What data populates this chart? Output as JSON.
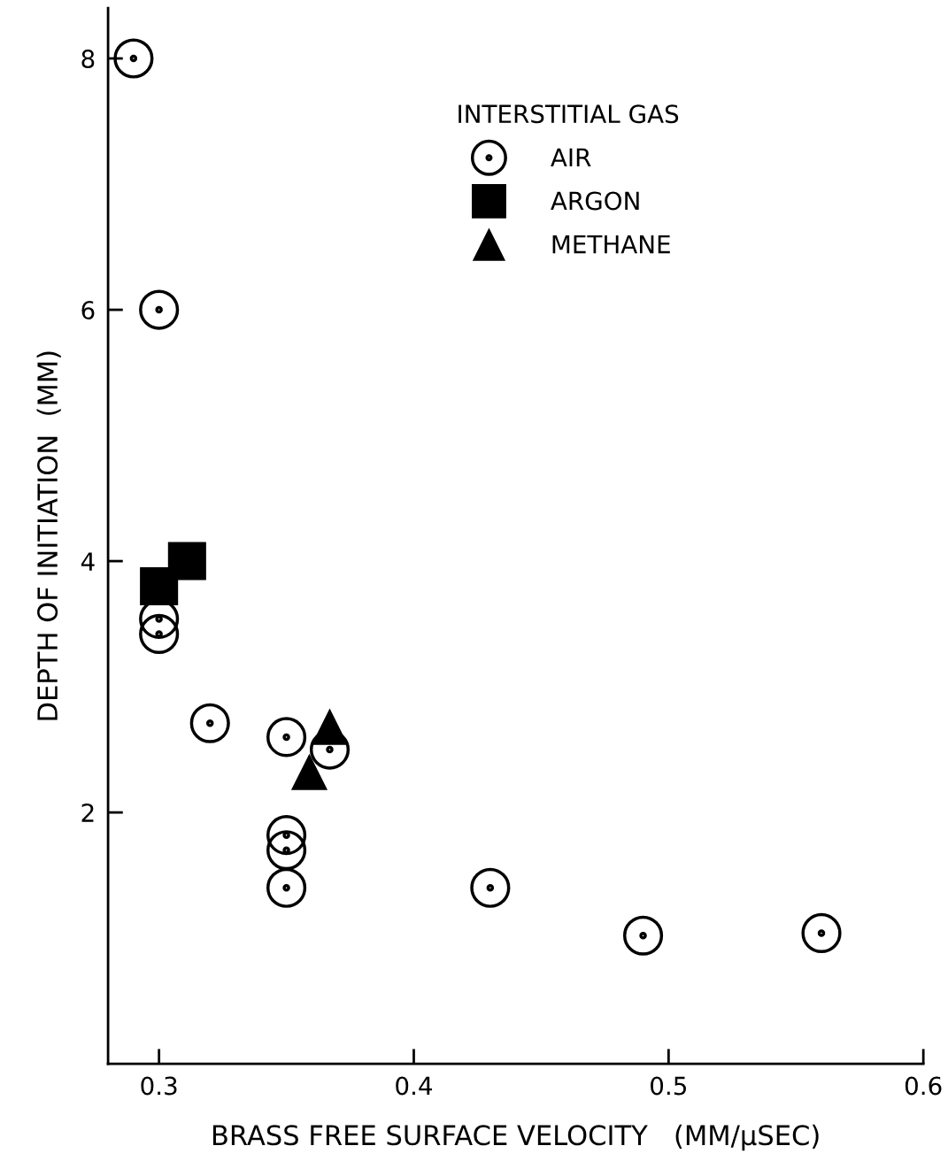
{
  "chart_data": {
    "type": "scatter",
    "xlabel": "BRASS FREE SURFACE VELOCITY   (MM/μSEC)",
    "ylabel": "DEPTH OF INITIATION  (MM)",
    "legend_title": "INTERSTITIAL GAS",
    "legend": "top right",
    "grid": false,
    "xlim": [
      0.28,
      0.6
    ],
    "xticks": [
      0.3,
      0.4,
      0.5,
      0.6
    ],
    "ylim": [
      0,
      8.4
    ],
    "yticks": [
      2,
      4,
      6,
      8
    ],
    "series": [
      {
        "name": "AIR",
        "color": "#000000",
        "marker": "circle",
        "x": [
          0.29,
          0.3,
          0.3,
          0.3,
          0.32,
          0.35,
          0.367,
          0.35,
          0.35,
          0.35,
          0.43,
          0.49,
          0.56
        ],
        "values": [
          8,
          6,
          3.54,
          3.42,
          2.71,
          2.6,
          2.5,
          1.82,
          1.7,
          1.4,
          1.4,
          1.02,
          1.04
        ]
      },
      {
        "name": "ARGON",
        "color": "#000000",
        "marker": "square",
        "x": [
          0.3,
          0.311
        ],
        "values": [
          3.8,
          4.0
        ]
      },
      {
        "name": "METHANE",
        "color": "#000000",
        "marker": "triangle",
        "x": [
          0.367,
          0.359
        ],
        "values": [
          2.68,
          2.32
        ]
      }
    ]
  }
}
